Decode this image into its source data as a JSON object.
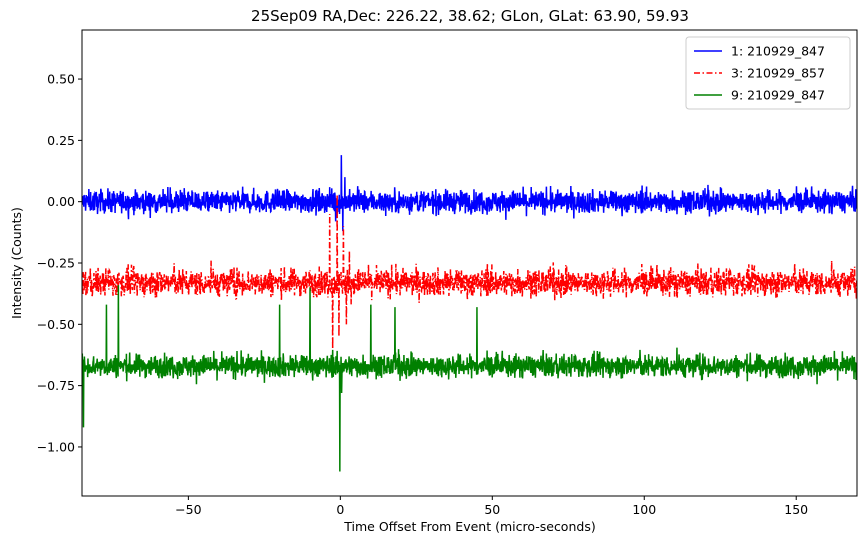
{
  "chart_data": {
    "type": "line",
    "title": "25Sep09 RA,Dec:  226.22,  38.62; GLon, GLat:   63.90,  59.93",
    "xlabel": "Time Offset From Event (micro-seconds)",
    "ylabel": "Intensity (Counts)",
    "xlim": [
      -85,
      170
    ],
    "ylim": [
      -1.2,
      0.7
    ],
    "xticks": [
      -50,
      0,
      50,
      100,
      150
    ],
    "yticks": [
      -1.0,
      -0.75,
      -0.5,
      -0.25,
      0.0,
      0.25,
      0.5
    ],
    "xtick_labels": [
      "−50",
      "0",
      "50",
      "100",
      "150"
    ],
    "ytick_labels": [
      "−1.00",
      "−0.75",
      "−0.50",
      "−0.25",
      "0.00",
      "0.25",
      "0.50"
    ],
    "legend_position": "top-right",
    "series": [
      {
        "name": "1: 210929_847",
        "color": "#0000ff",
        "linestyle": "solid",
        "baseline": 0.0,
        "noise_amplitude": 0.05,
        "features": [
          {
            "x": 0.3,
            "y": 0.19
          },
          {
            "x": 0.8,
            "y": -0.12
          },
          {
            "x": 1.5,
            "y": 0.1
          },
          {
            "x": -1.5,
            "y": -0.08
          }
        ]
      },
      {
        "name": "3: 210929_857",
        "color": "#ff0000",
        "linestyle": "dashdot",
        "baseline": -0.33,
        "noise_amplitude": 0.06,
        "features": [
          {
            "x": -3.5,
            "y": -0.05
          },
          {
            "x": -2.5,
            "y": -0.6
          },
          {
            "x": -1.0,
            "y": 0.03
          },
          {
            "x": -0.5,
            "y": -0.55
          },
          {
            "x": 1.0,
            "y": -0.1
          },
          {
            "x": 2.0,
            "y": -0.5
          },
          {
            "x": 3.0,
            "y": -0.2
          }
        ]
      },
      {
        "name": "9: 210929_847",
        "color": "#008000",
        "linestyle": "solid",
        "baseline": -0.67,
        "noise_amplitude": 0.05,
        "features": [
          {
            "x": -84.5,
            "y": -0.92
          },
          {
            "x": -77,
            "y": -0.42
          },
          {
            "x": -73,
            "y": -0.34
          },
          {
            "x": -20,
            "y": -0.42
          },
          {
            "x": -10,
            "y": -0.35
          },
          {
            "x": -0.2,
            "y": -1.1
          },
          {
            "x": 0.4,
            "y": -0.78
          },
          {
            "x": 10,
            "y": -0.42
          },
          {
            "x": 18,
            "y": -0.43
          },
          {
            "x": 45,
            "y": -0.43
          }
        ]
      }
    ]
  }
}
